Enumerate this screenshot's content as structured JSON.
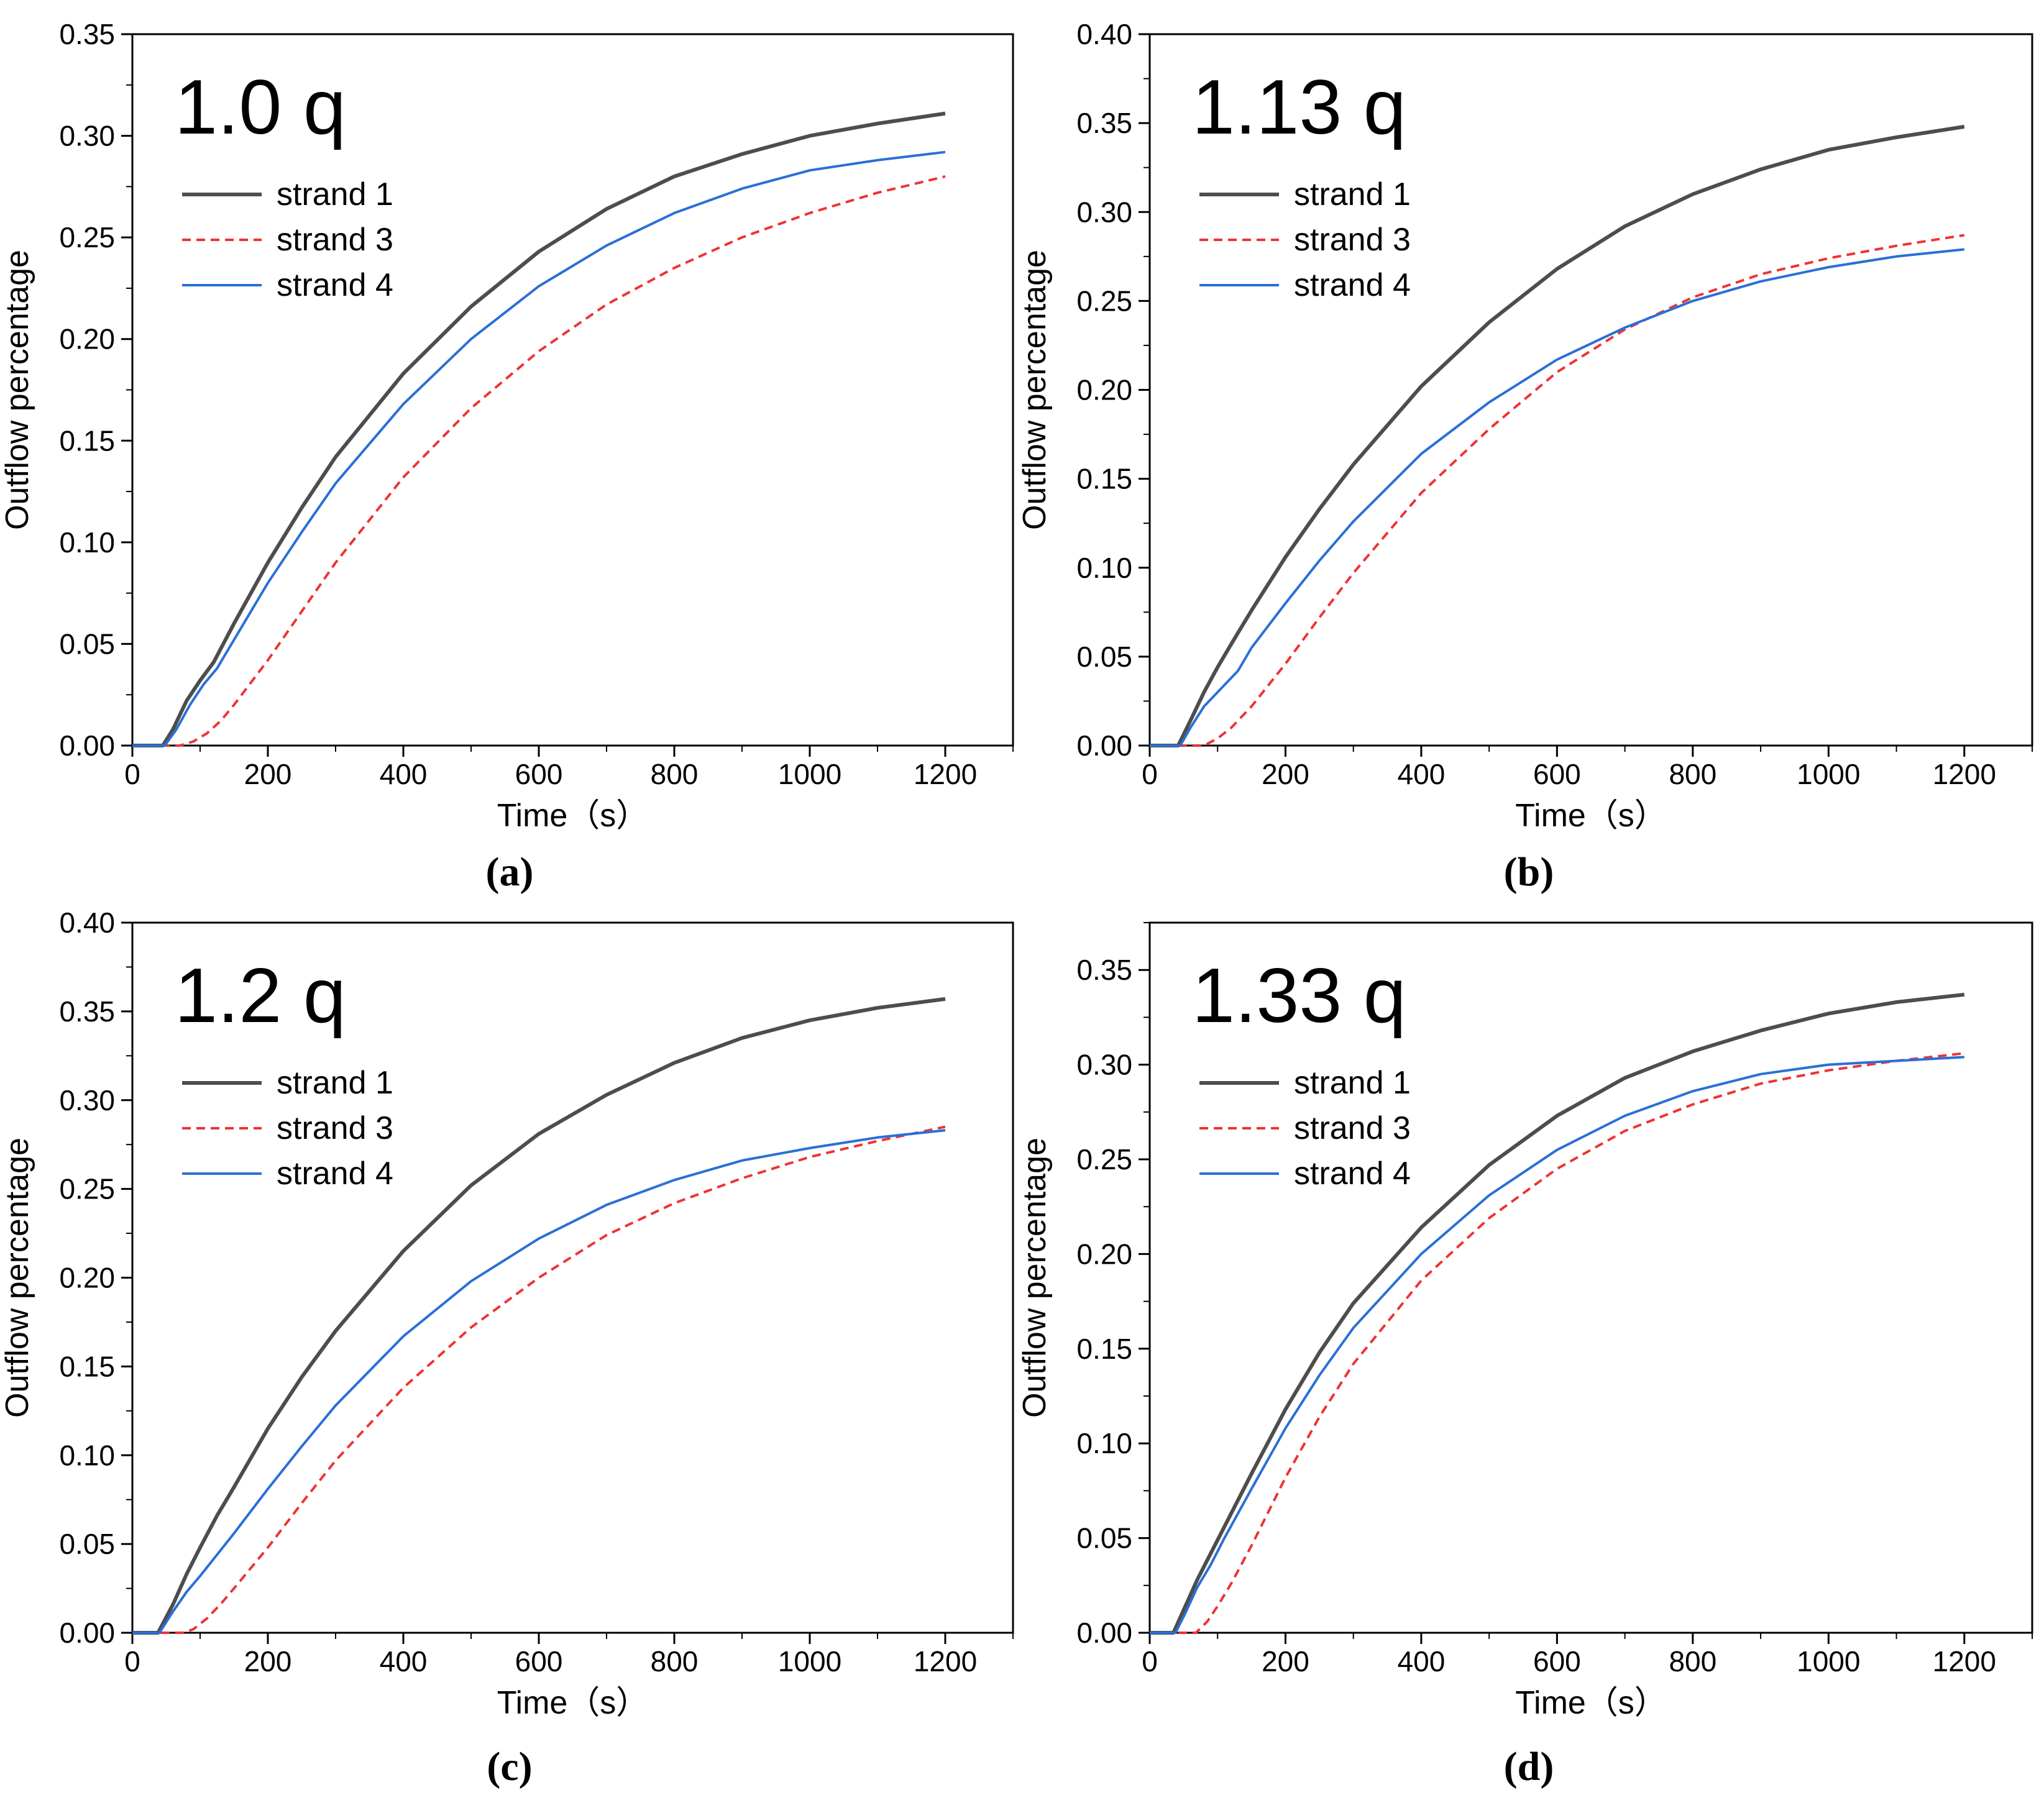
{
  "figure": {
    "colors": {
      "strand1": "#4d4d4d",
      "strand3": "#ee3333",
      "strand4": "#2a6fd6",
      "axis": "#000000"
    },
    "x_label": "Time（s）",
    "y_label": "Outflow percentage"
  },
  "chart_data": [
    {
      "type": "line",
      "id": "a",
      "panel_label": "(a)",
      "title": "1.0 q",
      "xlabel": "Time（s）",
      "ylabel": "Outflow percentage",
      "xlim": [
        0,
        1300
      ],
      "ylim": [
        0,
        0.35
      ],
      "xticks": [
        "0",
        "200",
        "400",
        "600",
        "800",
        "1000",
        "1200"
      ],
      "yticks": [
        "0.00",
        "0.05",
        "0.10",
        "0.15",
        "0.20",
        "0.25",
        "0.30",
        "0.35"
      ],
      "legend": "top-left",
      "series": [
        {
          "name": "strand 1",
          "style": "solid",
          "x": [
            0,
            45,
            60,
            80,
            100,
            120,
            150,
            200,
            250,
            300,
            400,
            500,
            600,
            700,
            800,
            900,
            1000,
            1100,
            1200
          ],
          "y": [
            0,
            0,
            0.008,
            0.022,
            0.032,
            0.041,
            0.06,
            0.09,
            0.117,
            0.142,
            0.183,
            0.216,
            0.243,
            0.264,
            0.28,
            0.291,
            0.3,
            0.306,
            0.311
          ]
        },
        {
          "name": "strand 3",
          "style": "dashed",
          "x": [
            0,
            70,
            90,
            110,
            130,
            150,
            200,
            250,
            300,
            400,
            500,
            600,
            700,
            800,
            900,
            1000,
            1100,
            1200
          ],
          "y": [
            0,
            0,
            0.002,
            0.006,
            0.012,
            0.02,
            0.042,
            0.066,
            0.09,
            0.132,
            0.166,
            0.194,
            0.217,
            0.235,
            0.25,
            0.262,
            0.272,
            0.28
          ]
        },
        {
          "name": "strand 4",
          "style": "solid",
          "x": [
            0,
            48,
            65,
            85,
            105,
            125,
            150,
            200,
            250,
            300,
            400,
            500,
            600,
            700,
            800,
            900,
            1000,
            1100,
            1200
          ],
          "y": [
            0,
            0,
            0.008,
            0.02,
            0.03,
            0.038,
            0.052,
            0.08,
            0.105,
            0.129,
            0.168,
            0.2,
            0.226,
            0.246,
            0.262,
            0.274,
            0.283,
            0.288,
            0.292
          ]
        }
      ]
    },
    {
      "type": "line",
      "id": "b",
      "panel_label": "(b)",
      "title": "1.13 q",
      "xlabel": "Time（s）",
      "ylabel": "Outflow percentage",
      "xlim": [
        0,
        1300
      ],
      "ylim": [
        0,
        0.4
      ],
      "xticks": [
        "0",
        "200",
        "400",
        "600",
        "800",
        "1000",
        "1200"
      ],
      "yticks": [
        "0.00",
        "0.05",
        "0.10",
        "0.15",
        "0.20",
        "0.25",
        "0.30",
        "0.35",
        "0.40"
      ],
      "legend": "top-left",
      "series": [
        {
          "name": "strand 1",
          "style": "solid",
          "x": [
            0,
            42,
            60,
            80,
            100,
            120,
            150,
            200,
            250,
            300,
            400,
            500,
            600,
            700,
            800,
            900,
            1000,
            1100,
            1200
          ],
          "y": [
            0,
            0,
            0.014,
            0.03,
            0.044,
            0.057,
            0.076,
            0.106,
            0.133,
            0.158,
            0.202,
            0.238,
            0.268,
            0.292,
            0.31,
            0.324,
            0.335,
            0.342,
            0.348
          ]
        },
        {
          "name": "strand 3",
          "style": "dashed",
          "x": [
            0,
            80,
            100,
            120,
            150,
            200,
            250,
            300,
            400,
            500,
            600,
            700,
            800,
            900,
            1000,
            1100,
            1200
          ],
          "y": [
            0,
            0,
            0.004,
            0.01,
            0.022,
            0.046,
            0.072,
            0.097,
            0.142,
            0.178,
            0.21,
            0.234,
            0.252,
            0.265,
            0.274,
            0.281,
            0.287
          ]
        },
        {
          "name": "strand 4",
          "style": "solid",
          "x": [
            0,
            45,
            60,
            80,
            100,
            130,
            150,
            200,
            250,
            300,
            400,
            500,
            600,
            700,
            800,
            900,
            1000,
            1100,
            1200
          ],
          "y": [
            0,
            0,
            0.01,
            0.022,
            0.03,
            0.042,
            0.055,
            0.08,
            0.104,
            0.126,
            0.164,
            0.193,
            0.217,
            0.235,
            0.25,
            0.261,
            0.269,
            0.275,
            0.279
          ]
        }
      ]
    },
    {
      "type": "line",
      "id": "c",
      "panel_label": "(c)",
      "title": "1.2 q",
      "xlabel": "Time（s）",
      "ylabel": "Outflow percentage",
      "xlim": [
        0,
        1300
      ],
      "ylim": [
        0,
        0.4
      ],
      "xticks": [
        "0",
        "200",
        "400",
        "600",
        "800",
        "1000",
        "1200"
      ],
      "yticks": [
        "0.00",
        "0.05",
        "0.10",
        "0.15",
        "0.20",
        "0.25",
        "0.30",
        "0.35",
        "0.40"
      ],
      "legend": "top-left",
      "series": [
        {
          "name": "strand 1",
          "style": "solid",
          "x": [
            0,
            38,
            60,
            80,
            100,
            125,
            150,
            200,
            250,
            300,
            400,
            500,
            600,
            700,
            800,
            900,
            1000,
            1100,
            1200
          ],
          "y": [
            0,
            0,
            0.016,
            0.033,
            0.048,
            0.066,
            0.082,
            0.115,
            0.144,
            0.17,
            0.215,
            0.252,
            0.281,
            0.303,
            0.321,
            0.335,
            0.345,
            0.352,
            0.357
          ]
        },
        {
          "name": "strand 3",
          "style": "dashed",
          "x": [
            0,
            75,
            90,
            110,
            130,
            150,
            200,
            250,
            300,
            400,
            500,
            600,
            700,
            800,
            900,
            1000,
            1100,
            1200
          ],
          "y": [
            0,
            0,
            0.002,
            0.008,
            0.016,
            0.025,
            0.048,
            0.073,
            0.097,
            0.138,
            0.172,
            0.2,
            0.224,
            0.242,
            0.256,
            0.268,
            0.277,
            0.285
          ]
        },
        {
          "name": "strand 4",
          "style": "solid",
          "x": [
            0,
            40,
            60,
            80,
            100,
            125,
            150,
            200,
            250,
            300,
            400,
            500,
            600,
            700,
            800,
            900,
            1000,
            1100,
            1200
          ],
          "y": [
            0,
            0,
            0.012,
            0.023,
            0.032,
            0.044,
            0.056,
            0.081,
            0.105,
            0.128,
            0.167,
            0.198,
            0.222,
            0.241,
            0.255,
            0.266,
            0.273,
            0.279,
            0.283
          ]
        }
      ]
    },
    {
      "type": "line",
      "id": "d",
      "panel_label": "(d)",
      "title": "1.33 q",
      "xlabel": "Time（s）",
      "ylabel": "Outflow percentage",
      "xlim": [
        0,
        1300
      ],
      "ylim": [
        0,
        0.375
      ],
      "xticks": [
        "0",
        "200",
        "400",
        "600",
        "800",
        "1000",
        "1200"
      ],
      "yticks": [
        "0.00",
        "0.05",
        "0.10",
        "0.15",
        "0.20",
        "0.25",
        "0.30",
        "0.35"
      ],
      "legend": "top-left",
      "series": [
        {
          "name": "strand 1",
          "style": "solid",
          "x": [
            0,
            35,
            50,
            70,
            90,
            110,
            150,
            200,
            250,
            300,
            400,
            500,
            600,
            700,
            800,
            900,
            1000,
            1100,
            1200
          ],
          "y": [
            0,
            0,
            0.012,
            0.028,
            0.042,
            0.056,
            0.084,
            0.118,
            0.148,
            0.174,
            0.214,
            0.247,
            0.273,
            0.293,
            0.307,
            0.318,
            0.327,
            0.333,
            0.337
          ]
        },
        {
          "name": "strand 3",
          "style": "dashed",
          "x": [
            0,
            68,
            85,
            100,
            120,
            150,
            200,
            250,
            300,
            400,
            500,
            600,
            700,
            800,
            900,
            1000,
            1100,
            1200
          ],
          "y": [
            0,
            0,
            0.006,
            0.014,
            0.026,
            0.046,
            0.082,
            0.114,
            0.142,
            0.186,
            0.219,
            0.245,
            0.265,
            0.279,
            0.29,
            0.297,
            0.302,
            0.306
          ]
        },
        {
          "name": "strand 4",
          "style": "solid",
          "x": [
            0,
            38,
            52,
            70,
            90,
            110,
            150,
            200,
            250,
            300,
            400,
            500,
            600,
            700,
            800,
            900,
            1000,
            1100,
            1200
          ],
          "y": [
            0,
            0,
            0.01,
            0.024,
            0.036,
            0.05,
            0.076,
            0.108,
            0.136,
            0.161,
            0.2,
            0.231,
            0.255,
            0.273,
            0.286,
            0.295,
            0.3,
            0.302,
            0.304
          ]
        }
      ]
    }
  ]
}
